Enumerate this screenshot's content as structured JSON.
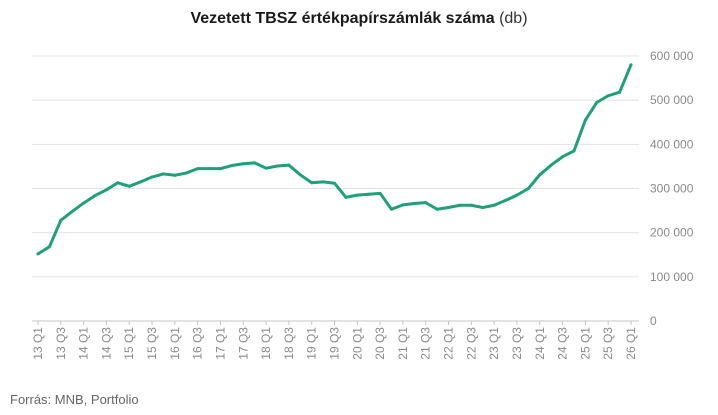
{
  "title": "Vezetett TBSZ értékpapírszámlák száma",
  "title_unit": "(db)",
  "source": "Forrás: MNB, Portfolio",
  "chart_data": {
    "type": "line",
    "title": "Vezetett TBSZ értékpapírszámlák száma (db)",
    "xlabel": "",
    "ylabel": "",
    "ylim": [
      0,
      600000
    ],
    "y_ticks": [
      0,
      100000,
      200000,
      300000,
      400000,
      500000,
      600000
    ],
    "y_tick_labels": [
      "0",
      "100 000",
      "200 000",
      "300 000",
      "400 000",
      "500 000",
      "600 000"
    ],
    "grid": true,
    "legend": "none",
    "x_tick_labels": [
      "13 Q1",
      "13 Q3",
      "14 Q1",
      "14 Q3",
      "15 Q1",
      "15 Q3",
      "16 Q1",
      "16 Q3",
      "17 Q1",
      "17 Q3",
      "18 Q1",
      "18 Q3",
      "19 Q1",
      "19 Q3",
      "20 Q1",
      "20 Q3",
      "21 Q1",
      "21 Q3",
      "22 Q1",
      "22 Q3",
      "23 Q1",
      "23 Q3",
      "24 Q1",
      "24 Q3",
      "25 Q1",
      "25 Q3",
      "26 Q1"
    ],
    "x": [
      "13 Q1",
      "13 Q2",
      "13 Q3",
      "13 Q4",
      "14 Q1",
      "14 Q2",
      "14 Q3",
      "14 Q4",
      "15 Q1",
      "15 Q2",
      "15 Q3",
      "15 Q4",
      "16 Q1",
      "16 Q2",
      "16 Q3",
      "16 Q4",
      "17 Q1",
      "17 Q2",
      "17 Q3",
      "17 Q4",
      "18 Q1",
      "18 Q2",
      "18 Q3",
      "18 Q4",
      "19 Q1",
      "19 Q2",
      "19 Q3",
      "19 Q4",
      "20 Q1",
      "20 Q2",
      "20 Q3",
      "20 Q4",
      "21 Q1",
      "21 Q2",
      "21 Q3",
      "21 Q4",
      "22 Q1",
      "22 Q2",
      "22 Q3",
      "22 Q4",
      "23 Q1",
      "23 Q2",
      "23 Q3",
      "23 Q4",
      "24 Q1",
      "24 Q2",
      "24 Q3",
      "24 Q4",
      "25 Q1",
      "25 Q2",
      "25 Q3",
      "25 Q4",
      "26 Q1"
    ],
    "series": [
      {
        "color": "#1fa07a",
        "values": [
          152000,
          168000,
          228000,
          248000,
          267000,
          284000,
          297000,
          313000,
          305000,
          315000,
          326000,
          333000,
          330000,
          335000,
          345000,
          345000,
          345000,
          352000,
          356000,
          358000,
          346000,
          351000,
          353000,
          331000,
          313000,
          315000,
          312000,
          280000,
          285000,
          287000,
          289000,
          253000,
          263000,
          266000,
          268000,
          253000,
          257000,
          262000,
          262000,
          257000,
          262000,
          273000,
          285000,
          300000,
          331000,
          353000,
          372000,
          385000,
          455000,
          495000,
          510000,
          518000,
          580000
        ]
      }
    ]
  }
}
